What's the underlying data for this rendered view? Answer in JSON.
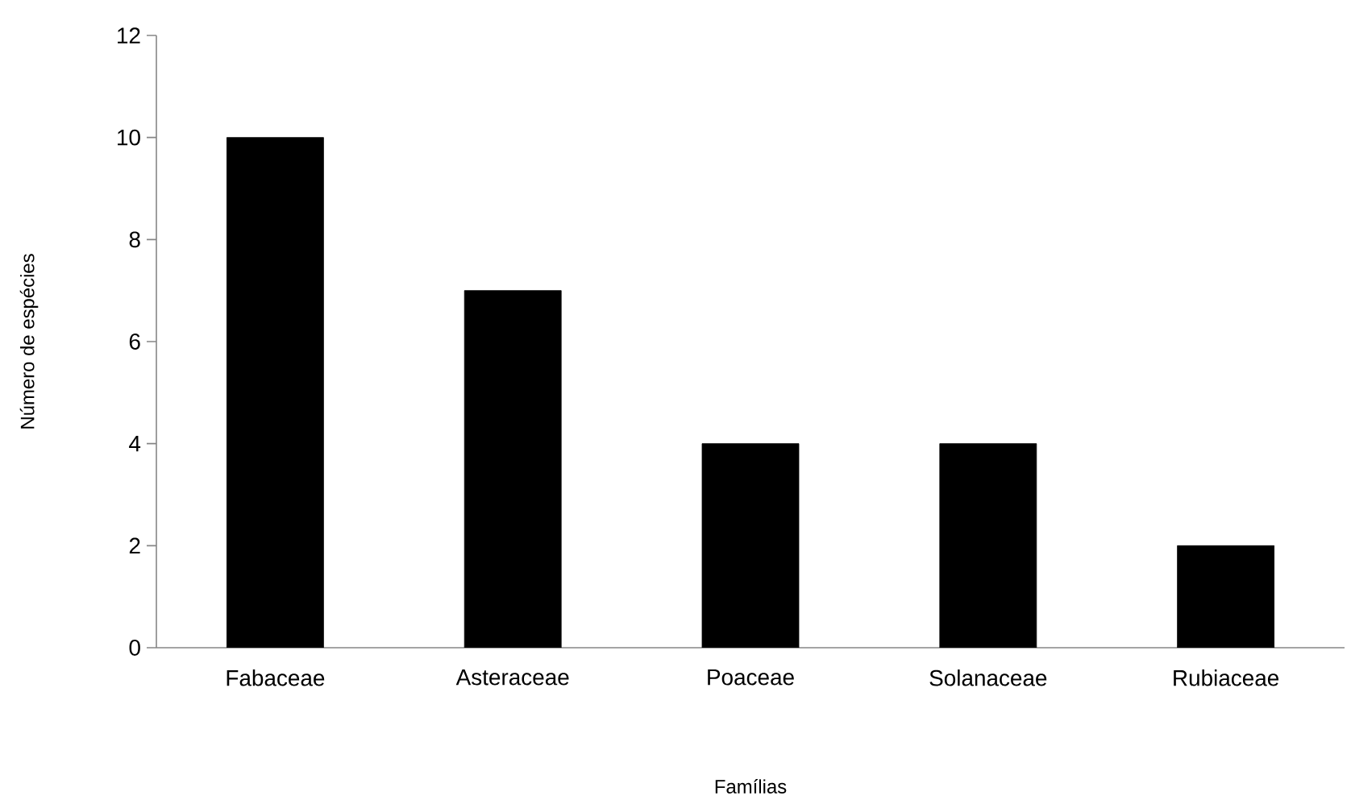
{
  "chart_data": {
    "type": "bar",
    "xlabel": "Famílias",
    "ylabel": "Número de espécies",
    "categories": [
      "Fabaceae",
      "Asteraceae",
      "Poaceae",
      "Solanaceae",
      "Rubiaceae"
    ],
    "values": [
      10,
      7,
      4,
      4,
      2
    ],
    "color": "#000000",
    "ylim": [
      0,
      12
    ],
    "yticks": [
      0,
      2,
      4,
      6,
      8,
      10,
      12
    ]
  }
}
